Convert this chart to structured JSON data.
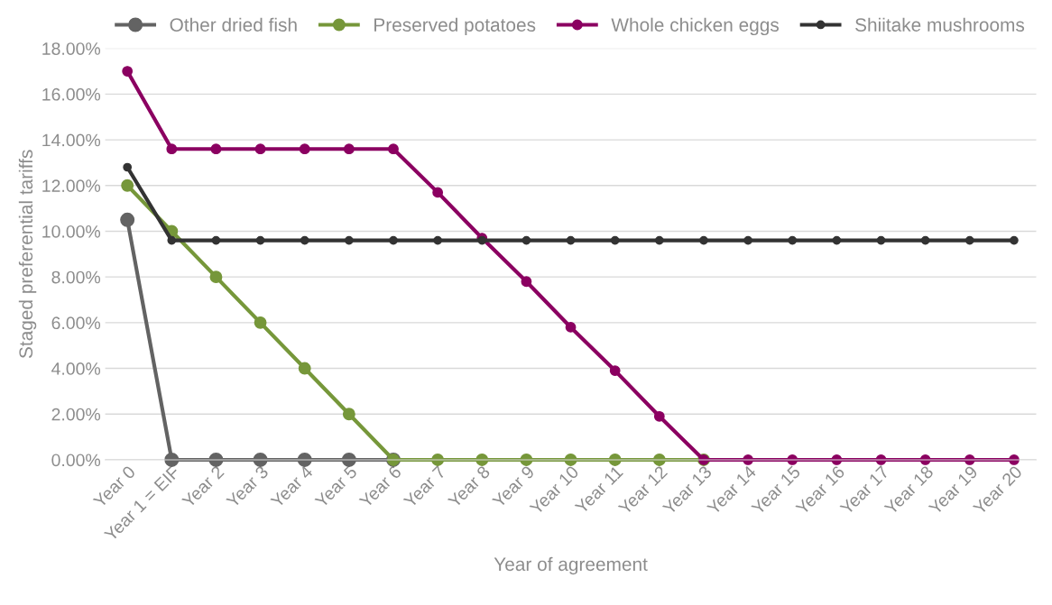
{
  "chart_data": {
    "type": "line",
    "xlabel": "Year of agreement",
    "ylabel": "Staged preferential tariffs",
    "categories": [
      "Year 0",
      "Year 1 = EIF",
      "Year 2",
      "Year 3",
      "Year 4",
      "Year 5",
      "Year 6",
      "Year 7",
      "Year 8",
      "Year 9",
      "Year 10",
      "Year 11",
      "Year 12",
      "Year 13",
      "Year 14",
      "Year 15",
      "Year 16",
      "Year 17",
      "Year 18",
      "Year 19",
      "Year 20"
    ],
    "series": [
      {
        "name": "Other dried fish",
        "color": "#636363",
        "values": [
          10.5,
          0,
          0,
          0,
          0,
          0,
          0,
          null,
          null,
          null,
          null,
          null,
          null,
          null,
          null,
          null,
          null,
          null,
          null,
          null,
          null
        ]
      },
      {
        "name": "Preserved potatoes",
        "color": "#76973a",
        "values": [
          12,
          10,
          8,
          6,
          4,
          2,
          0,
          0,
          0,
          0,
          0,
          0,
          0,
          0,
          null,
          null,
          null,
          null,
          null,
          null,
          null
        ]
      },
      {
        "name": "Whole chicken eggs",
        "color": "#8b0061",
        "values": [
          17,
          13.6,
          13.6,
          13.6,
          13.6,
          13.6,
          13.6,
          11.7,
          9.7,
          7.8,
          5.8,
          3.9,
          1.9,
          0,
          0,
          0,
          0,
          0,
          0,
          0,
          0
        ]
      },
      {
        "name": "Shiitake mushrooms",
        "color": "#333333",
        "values": [
          12.8,
          9.6,
          9.6,
          9.6,
          9.6,
          9.6,
          9.6,
          9.6,
          9.6,
          9.6,
          9.6,
          9.6,
          9.6,
          9.6,
          9.6,
          9.6,
          9.6,
          9.6,
          9.6,
          9.6,
          9.6
        ]
      }
    ],
    "ylim": [
      0,
      18
    ],
    "yticks": [
      {
        "value": 0,
        "label": "0.00%"
      },
      {
        "value": 2,
        "label": "2.00%"
      },
      {
        "value": 4,
        "label": "4.00%"
      },
      {
        "value": 6,
        "label": "6.00%"
      },
      {
        "value": 8,
        "label": "8.00%"
      },
      {
        "value": 10,
        "label": "10.00%"
      },
      {
        "value": 12,
        "label": "12.00%"
      },
      {
        "value": 14,
        "label": "14.00%"
      },
      {
        "value": 16,
        "label": "16.00%"
      },
      {
        "value": 18,
        "label": "18.00%"
      }
    ],
    "grid": "y",
    "legend": "top",
    "marker": "circle",
    "line_style": "solid"
  }
}
